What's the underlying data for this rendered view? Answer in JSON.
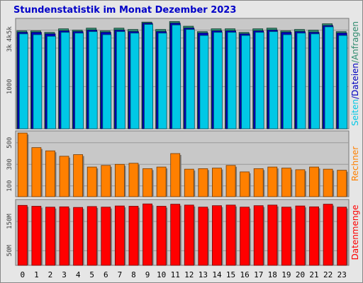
{
  "title": "Stundenstatistik im Monat Dezember 2023",
  "colors": {
    "background": "#e6e6e6",
    "plot_background": "#c8c8c8",
    "title": "#0000c8",
    "anfragen": "#2e8b6e",
    "dateien": "#0000c0",
    "seiten": "#00c8e6",
    "rechner": "#ff8000",
    "datenmenge": "#ff0000"
  },
  "chart_data": [
    {
      "type": "bar",
      "panel": "top",
      "scale": "log",
      "ylabel_parts": [
        "Seiten",
        "/",
        "Dateien",
        "/",
        "Anfragen"
      ],
      "ytick_labels": [
        "5k",
        "4k",
        "3k",
        "1000"
      ],
      "ytick_values": [
        5000,
        4000,
        3000,
        1000
      ],
      "ylim": [
        300,
        7000
      ],
      "categories": [
        "0",
        "1",
        "2",
        "3",
        "4",
        "5",
        "6",
        "7",
        "8",
        "9",
        "10",
        "11",
        "12",
        "13",
        "14",
        "15",
        "16",
        "17",
        "18",
        "19",
        "20",
        "21",
        "22",
        "23"
      ],
      "series": [
        {
          "name": "Anfragen",
          "values": [
            4900,
            4900,
            4700,
            5200,
            5000,
            5300,
            4900,
            5300,
            5100,
            6300,
            5100,
            6400,
            5600,
            4800,
            5200,
            5200,
            4700,
            5200,
            5300,
            4900,
            5100,
            5000,
            6000,
            4800
          ]
        },
        {
          "name": "Dateien",
          "values": [
            4700,
            4700,
            4500,
            4900,
            4800,
            5000,
            4700,
            5000,
            4800,
            6100,
            4800,
            6100,
            5300,
            4600,
            4900,
            4900,
            4500,
            4900,
            5000,
            4700,
            4800,
            4700,
            5700,
            4600
          ]
        },
        {
          "name": "Seiten",
          "values": [
            4500,
            4400,
            4200,
            4700,
            4600,
            4800,
            4400,
            4800,
            4600,
            5900,
            4600,
            5800,
            5100,
            4300,
            4700,
            4700,
            4300,
            4700,
            4800,
            4400,
            4600,
            4500,
            5500,
            4300
          ]
        }
      ]
    },
    {
      "type": "bar",
      "panel": "middle",
      "ylabel": "Rechner",
      "ytick_labels": [
        "500",
        "300",
        "100"
      ],
      "ytick_values": [
        500,
        300,
        100
      ],
      "ylim": [
        0,
        610
      ],
      "categories": [
        "0",
        "1",
        "2",
        "3",
        "4",
        "5",
        "6",
        "7",
        "8",
        "9",
        "10",
        "11",
        "12",
        "13",
        "14",
        "15",
        "16",
        "17",
        "18",
        "19",
        "20",
        "21",
        "22",
        "23"
      ],
      "series": [
        {
          "name": "Rechner",
          "values": [
            590,
            455,
            425,
            375,
            390,
            275,
            290,
            300,
            310,
            260,
            275,
            400,
            255,
            260,
            265,
            290,
            230,
            260,
            275,
            265,
            250,
            275,
            255,
            245
          ]
        }
      ]
    },
    {
      "type": "bar",
      "panel": "bottom",
      "ylabel": "Datenmenge",
      "ytick_labels": [
        "150M",
        "50M"
      ],
      "ytick_values": [
        150,
        50
      ],
      "ylim": [
        0,
        225
      ],
      "categories": [
        "0",
        "1",
        "2",
        "3",
        "4",
        "5",
        "6",
        "7",
        "8",
        "9",
        "10",
        "11",
        "12",
        "13",
        "14",
        "15",
        "16",
        "17",
        "18",
        "19",
        "20",
        "21",
        "22",
        "23"
      ],
      "series": [
        {
          "name": "Datenmenge",
          "values": [
            205,
            202,
            199,
            200,
            198,
            201,
            199,
            203,
            202,
            210,
            202,
            209,
            206,
            199,
            204,
            206,
            199,
            204,
            206,
            199,
            203,
            200,
            209,
            199
          ]
        }
      ]
    }
  ]
}
